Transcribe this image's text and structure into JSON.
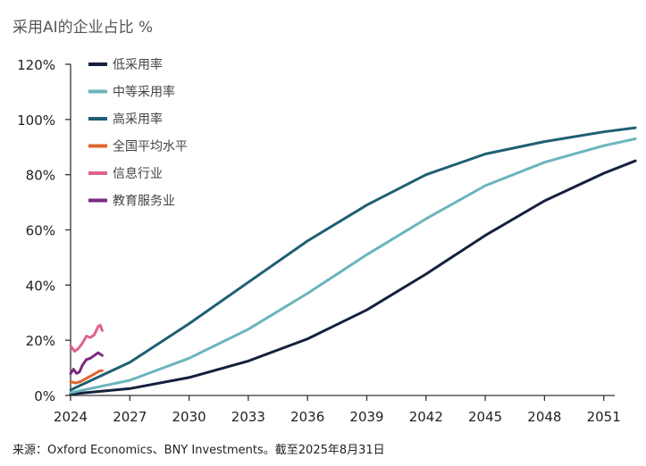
{
  "chart_data": {
    "type": "line",
    "title": "采用AI的企业占比 %",
    "source": "来源：Oxford Economics、BNY Investments。截至2025年8月31日",
    "xlabel": "",
    "ylabel": "",
    "xlim": [
      2024,
      2052.6
    ],
    "ylim": [
      0,
      120
    ],
    "x_ticks": [
      "2024",
      "2027",
      "2030",
      "2033",
      "2036",
      "2039",
      "2042",
      "2045",
      "2048",
      "2051"
    ],
    "y_ticks": [
      "0%",
      "20%",
      "40%",
      "60%",
      "80%",
      "100%",
      "120%"
    ],
    "grid": false,
    "legend_position": "top-left",
    "series": [
      {
        "name": "低采用率",
        "color": "#14213d",
        "x": [
          2024,
          2027,
          2030,
          2033,
          2036,
          2039,
          2042,
          2045,
          2048,
          2051,
          2052.6
        ],
        "y": [
          0.5,
          2.5,
          6.5,
          12.5,
          20.5,
          31,
          44,
          58,
          70.5,
          80.5,
          85
        ]
      },
      {
        "name": "中等采用率",
        "color": "#6bb5bd",
        "x": [
          2024,
          2027,
          2030,
          2033,
          2036,
          2039,
          2042,
          2045,
          2048,
          2051,
          2052.6
        ],
        "y": [
          1,
          5.5,
          13.5,
          24,
          37,
          51,
          64,
          76,
          84.5,
          90.5,
          93
        ]
      },
      {
        "name": "高采用率",
        "color": "#1f5f73",
        "x": [
          2024,
          2027,
          2030,
          2033,
          2036,
          2039,
          2042,
          2045,
          2048,
          2051,
          2052.6
        ],
        "y": [
          2,
          12,
          26,
          41,
          56,
          69,
          80,
          87.5,
          92,
          95.5,
          97
        ]
      },
      {
        "name": "全国平均水平",
        "color": "#e0652e",
        "x": [
          2024,
          2024.25,
          2024.5,
          2024.75,
          2025,
          2025.25,
          2025.5,
          2025.6
        ],
        "y": [
          5,
          4.5,
          5,
          6,
          7,
          8,
          9,
          9
        ]
      },
      {
        "name": "信息行业",
        "color": "#e0628f",
        "x": [
          2024,
          2024.2,
          2024.4,
          2024.6,
          2024.8,
          2025,
          2025.2,
          2025.4,
          2025.5,
          2025.6
        ],
        "y": [
          18,
          16,
          17,
          19,
          21.5,
          21,
          22,
          25,
          25.5,
          23.5
        ]
      },
      {
        "name": "教育服务业",
        "color": "#7b2a7f",
        "x": [
          2024,
          2024.15,
          2024.3,
          2024.45,
          2024.6,
          2024.8,
          2025,
          2025.2,
          2025.4,
          2025.6
        ],
        "y": [
          8,
          9.5,
          8,
          8.5,
          11,
          13,
          13.5,
          14.5,
          15.5,
          14.5
        ]
      }
    ]
  }
}
